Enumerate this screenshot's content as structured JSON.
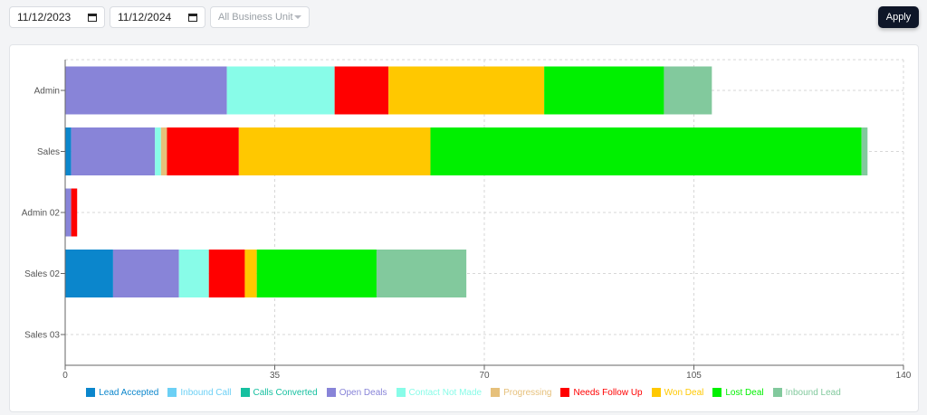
{
  "filters": {
    "start_date": "11/12/2023",
    "end_date": "11/12/2024",
    "business_unit": "All Business Unit",
    "apply_label": "Apply"
  },
  "chart_data": {
    "type": "bar",
    "orientation": "horizontal",
    "stacked": true,
    "categories": [
      "Admin",
      "Sales",
      "Admin 02",
      "Sales 02",
      "Sales 03"
    ],
    "xlim": [
      0,
      140
    ],
    "xticks": [
      0,
      35,
      70,
      105,
      140
    ],
    "grid": true,
    "legend_position": "bottom",
    "series": [
      {
        "name": "Lead Accepted",
        "color": "#0b86cc",
        "values": [
          0,
          1,
          0,
          8,
          0
        ]
      },
      {
        "name": "Inbound Call",
        "color": "#6cd0f5",
        "values": [
          0,
          0,
          0,
          0,
          0
        ]
      },
      {
        "name": "Calls Converted",
        "color": "#16c0a0",
        "values": [
          0,
          0,
          0,
          0,
          0
        ]
      },
      {
        "name": "Open Deals",
        "color": "#8884d8",
        "values": [
          27,
          14,
          1,
          11,
          0
        ]
      },
      {
        "name": "Contact Not Made",
        "color": "#88fce8",
        "values": [
          18,
          1,
          0,
          5,
          0
        ]
      },
      {
        "name": "Progressing",
        "color": "#e6c07b",
        "values": [
          0,
          1,
          0,
          0,
          0
        ]
      },
      {
        "name": "Needs Follow Up",
        "color": "#ff0000",
        "values": [
          9,
          12,
          1,
          6,
          0
        ]
      },
      {
        "name": "Won Deal",
        "color": "#ffc800",
        "values": [
          26,
          32,
          0,
          2,
          0
        ]
      },
      {
        "name": "Lost Deal",
        "color": "#00f000",
        "values": [
          20,
          72,
          0,
          20,
          0
        ]
      },
      {
        "name": "Inbound Lead",
        "color": "#82c99d",
        "values": [
          8,
          1,
          0,
          15,
          0
        ]
      }
    ]
  }
}
